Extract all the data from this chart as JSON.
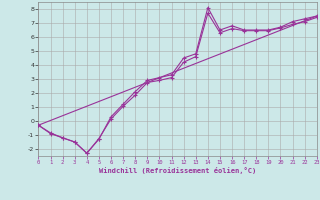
{
  "bg_color": "#cce8e8",
  "grid_color": "#aaaaaa",
  "line_color": "#993399",
  "xlabel": "Windchill (Refroidissement éolien,°C)",
  "xlim": [
    0,
    23
  ],
  "ylim": [
    -2.5,
    8.5
  ],
  "xticks": [
    0,
    1,
    2,
    3,
    4,
    5,
    6,
    7,
    8,
    9,
    10,
    11,
    12,
    13,
    14,
    15,
    16,
    17,
    18,
    19,
    20,
    21,
    22,
    23
  ],
  "yticks": [
    -2,
    -1,
    0,
    1,
    2,
    3,
    4,
    5,
    6,
    7,
    8
  ],
  "line1_x": [
    0,
    1,
    2,
    3,
    4,
    5,
    6,
    7,
    8,
    9,
    10,
    11,
    12,
    13,
    14,
    15,
    16,
    17,
    18,
    19,
    20,
    21,
    22,
    23
  ],
  "line1_y": [
    -0.3,
    -0.9,
    -1.2,
    -1.5,
    -2.3,
    -1.3,
    0.3,
    1.2,
    2.1,
    2.9,
    3.1,
    3.3,
    4.5,
    4.8,
    8.1,
    6.5,
    6.8,
    6.5,
    6.5,
    6.5,
    6.7,
    7.1,
    7.3,
    7.5
  ],
  "line2_x": [
    0,
    1,
    2,
    3,
    4,
    5,
    6,
    7,
    8,
    9,
    10,
    11,
    12,
    13,
    14,
    15,
    16,
    17,
    18,
    19,
    20,
    21,
    22,
    23
  ],
  "line2_y": [
    -0.3,
    -0.85,
    -1.2,
    -1.5,
    -2.3,
    -1.25,
    0.15,
    1.05,
    1.85,
    2.75,
    2.9,
    3.1,
    4.2,
    4.6,
    7.7,
    6.3,
    6.6,
    6.45,
    6.45,
    6.45,
    6.65,
    6.9,
    7.1,
    7.4
  ],
  "line3_x": [
    0,
    23
  ],
  "line3_y": [
    -0.3,
    7.5
  ]
}
